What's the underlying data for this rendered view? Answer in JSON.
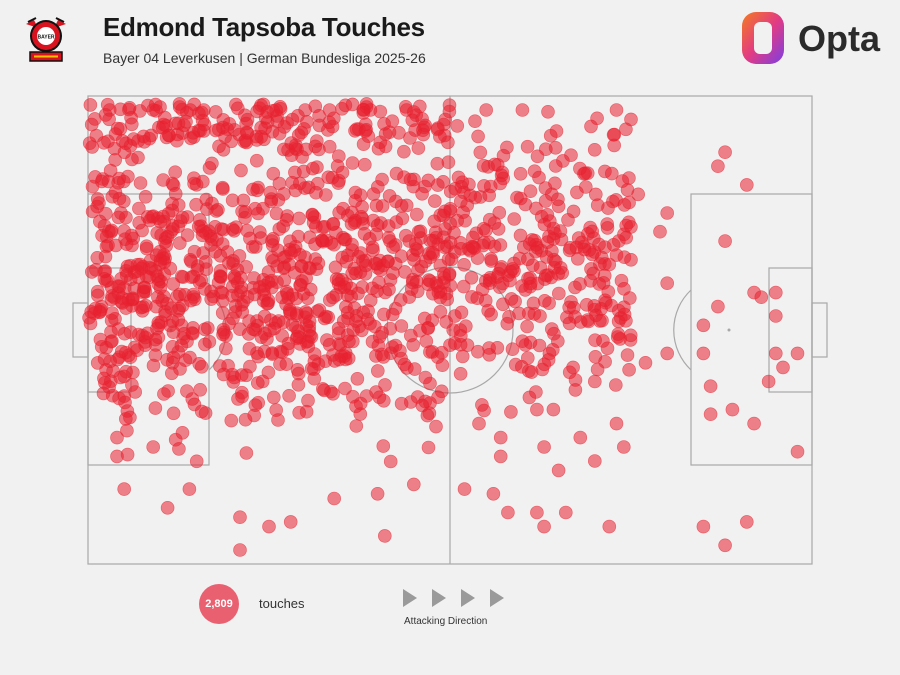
{
  "header": {
    "title": "Edmond Tapsoba Touches",
    "subtitle": "Bayer 04 Leverkusen | German Bundesliga 2025-26",
    "crest_icon": "bayer-leverkusen-crest-icon",
    "brand_icon": "opta-logo-icon",
    "brand_text": "Opta"
  },
  "legend": {
    "count": "2,809",
    "label": "touches",
    "direction_label": "Attacking Direction",
    "arrow_icon": "play-triangle-icon"
  },
  "colors": {
    "touch": "#e8212f",
    "pitch_lines": "#a8a8a8",
    "background": "#f1f1f1",
    "legend_circle": "#e96070"
  },
  "chart_data": {
    "type": "scatter",
    "total_touches": 2809,
    "x_range": [
      0,
      100
    ],
    "y_range": [
      0,
      100
    ],
    "direction": "left-to-right",
    "density_regions": [
      {
        "x": [
          0,
          50
        ],
        "y": [
          0,
          100
        ],
        "density": "very-high"
      },
      {
        "x": [
          50,
          75
        ],
        "y": [
          0,
          75
        ],
        "density": "high"
      },
      {
        "x": [
          75,
          100
        ],
        "y": [
          0,
          100
        ],
        "density": "low"
      }
    ],
    "sample_points": [
      [
        3,
        3
      ],
      [
        9,
        3
      ],
      [
        16,
        3
      ],
      [
        26,
        3
      ],
      [
        30,
        3
      ],
      [
        39,
        3
      ],
      [
        44,
        3
      ],
      [
        55,
        3
      ],
      [
        60,
        3
      ],
      [
        73,
        3
      ],
      [
        75,
        5
      ],
      [
        87,
        15
      ],
      [
        88,
        12
      ],
      [
        91,
        19
      ],
      [
        88,
        31
      ],
      [
        87,
        45
      ],
      [
        85,
        49
      ],
      [
        85,
        55
      ],
      [
        86,
        62
      ],
      [
        92,
        42
      ],
      [
        93,
        43
      ],
      [
        95,
        42
      ],
      [
        95,
        47
      ],
      [
        95,
        55
      ],
      [
        96,
        58
      ],
      [
        98,
        55
      ],
      [
        94,
        61
      ],
      [
        89,
        67
      ],
      [
        98,
        76
      ],
      [
        92,
        70
      ],
      [
        86,
        68
      ],
      [
        85,
        92
      ],
      [
        88,
        96
      ],
      [
        91,
        91
      ],
      [
        4,
        73
      ],
      [
        4,
        77
      ],
      [
        9,
        75
      ],
      [
        5,
        84
      ],
      [
        14,
        84
      ],
      [
        11,
        88
      ],
      [
        21,
        90
      ],
      [
        25,
        92
      ],
      [
        21,
        97
      ],
      [
        28,
        91
      ],
      [
        34,
        86
      ],
      [
        40,
        85
      ],
      [
        45,
        83
      ],
      [
        41,
        94
      ],
      [
        52,
        84
      ],
      [
        56,
        85
      ],
      [
        58,
        89
      ],
      [
        62,
        89
      ],
      [
        63,
        92
      ],
      [
        66,
        89
      ],
      [
        72,
        92
      ],
      [
        65,
        80
      ],
      [
        63,
        75
      ],
      [
        57,
        77
      ],
      [
        54,
        70
      ],
      [
        57,
        73
      ],
      [
        62,
        67
      ],
      [
        68,
        73
      ],
      [
        70,
        78
      ],
      [
        74,
        75
      ],
      [
        73,
        70
      ],
      [
        70,
        61
      ],
      [
        67,
        58
      ],
      [
        77,
        57
      ],
      [
        80,
        55
      ],
      [
        71,
        48
      ],
      [
        72,
        36
      ],
      [
        73,
        34
      ],
      [
        79,
        29
      ],
      [
        80,
        25
      ],
      [
        76,
        21
      ],
      [
        80,
        40
      ]
    ]
  }
}
